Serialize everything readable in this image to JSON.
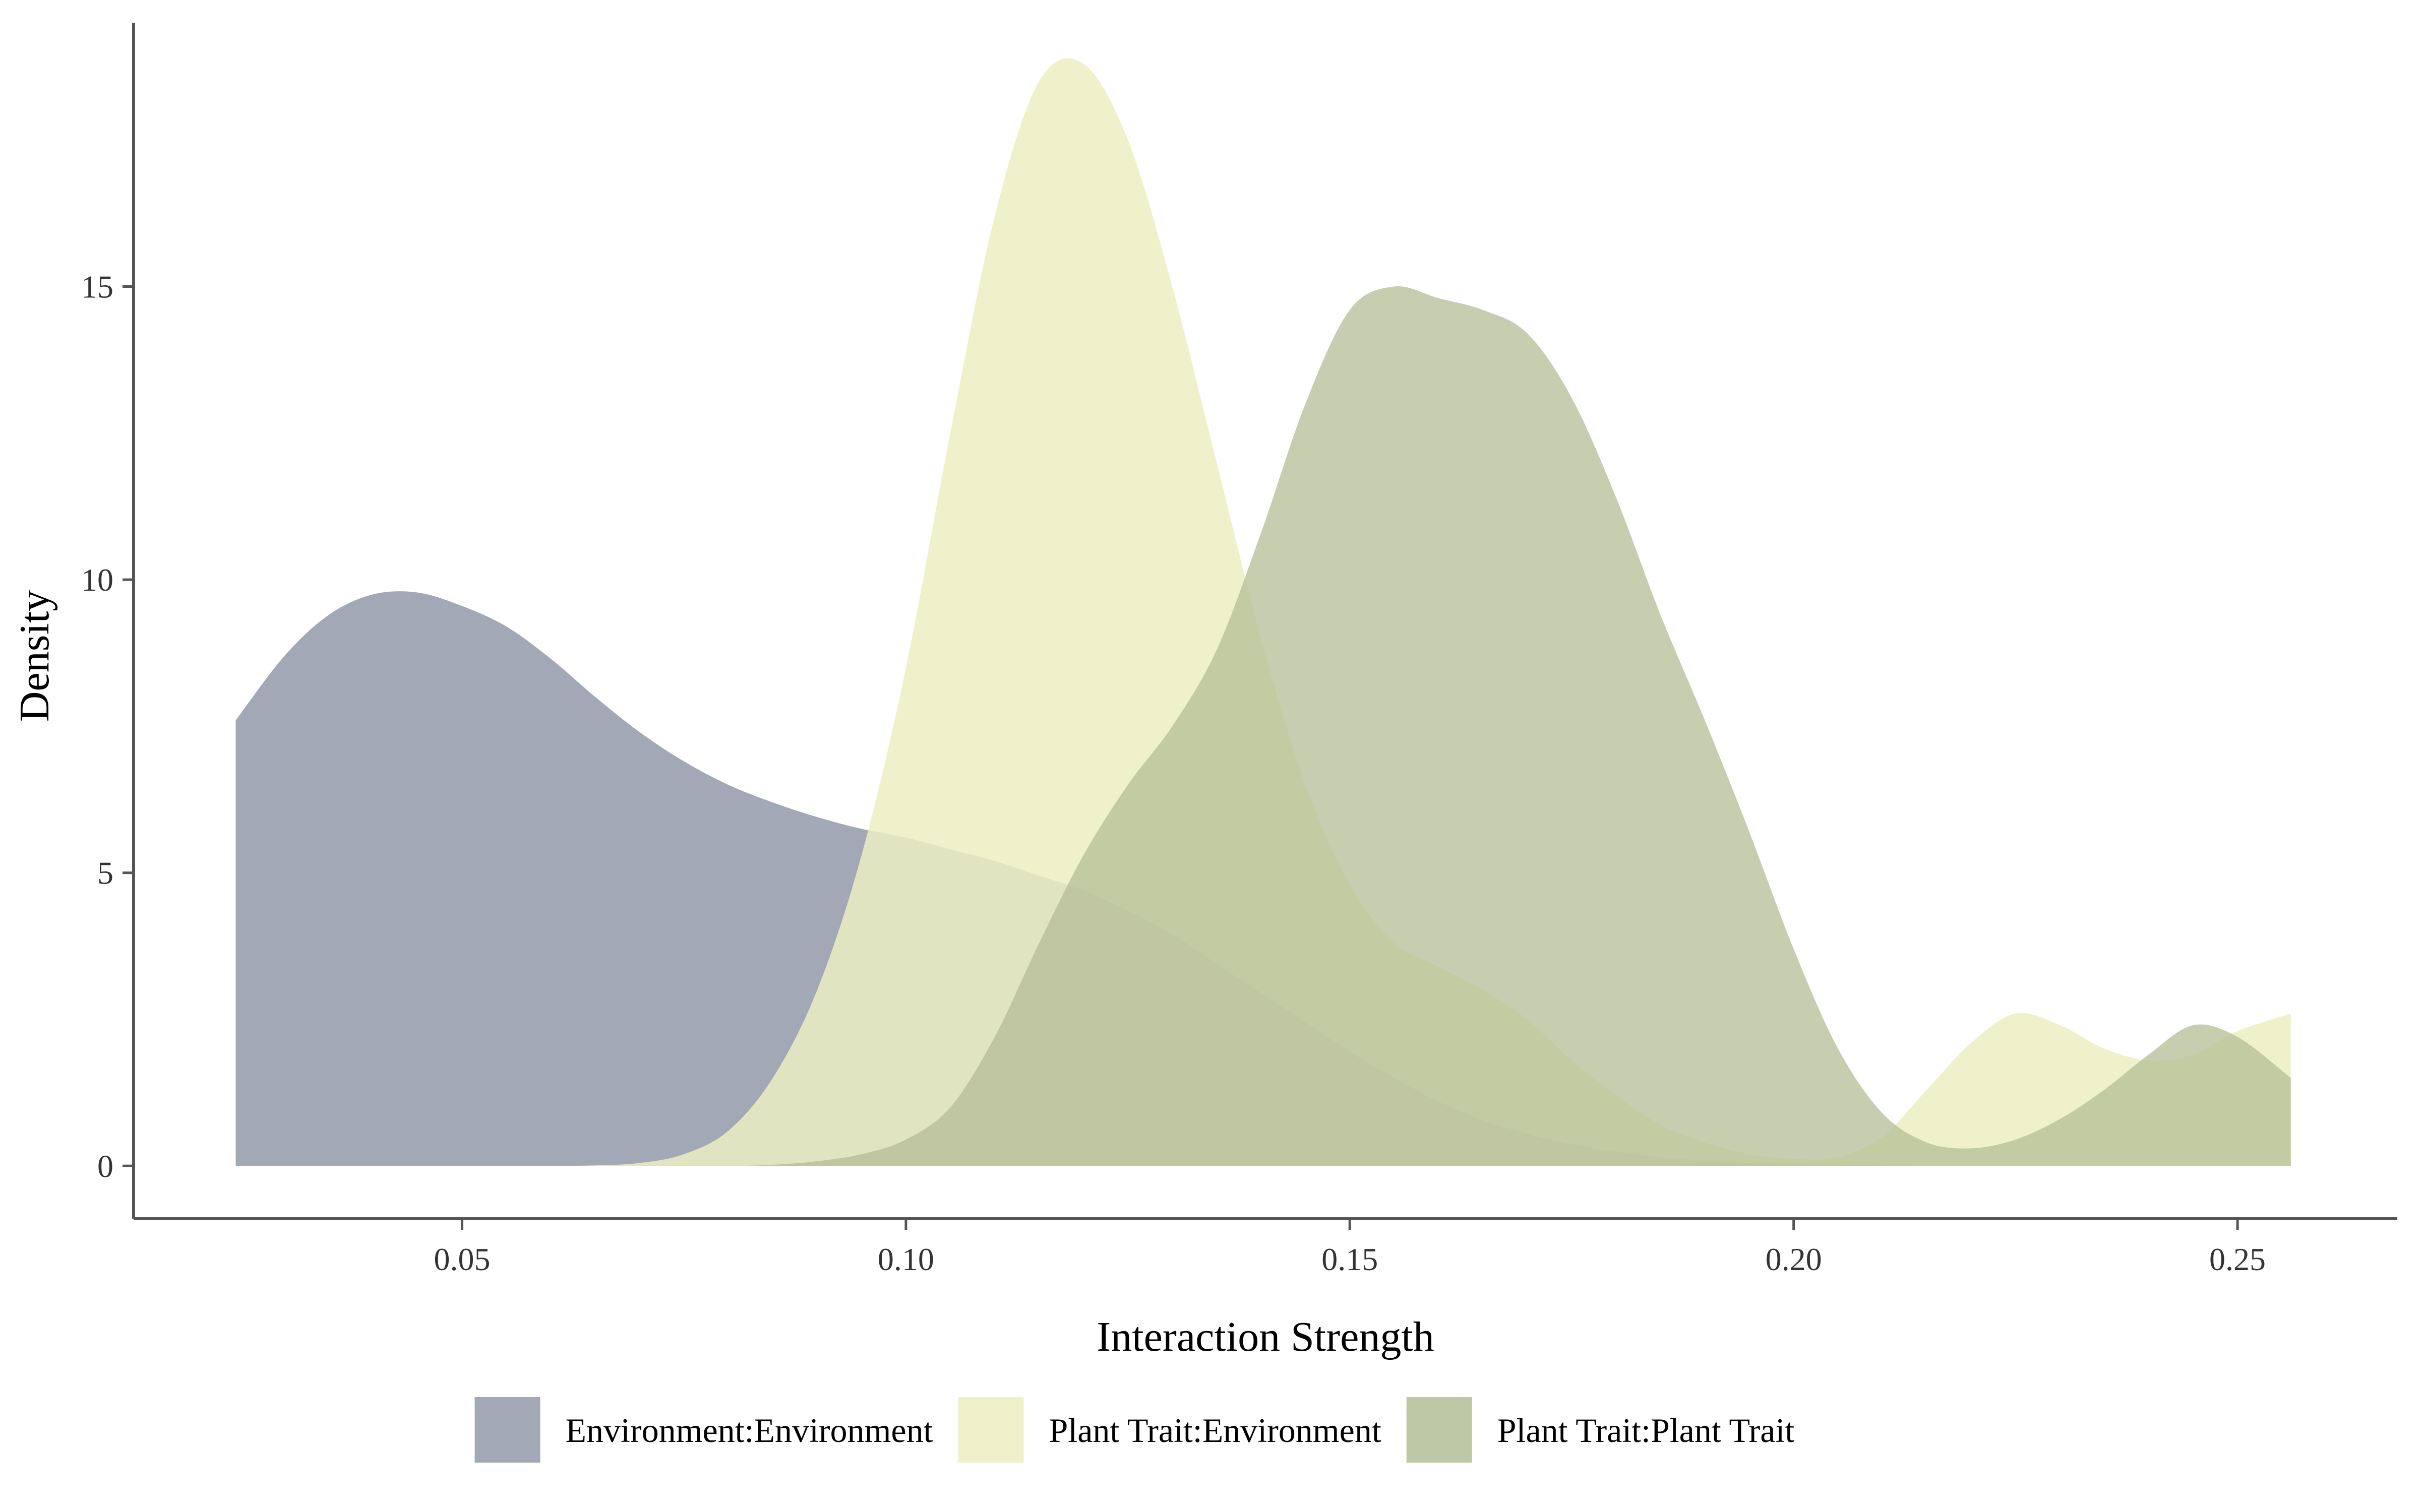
{
  "chart_data": {
    "type": "area",
    "subtype": "density",
    "title": "",
    "xlabel": "Interaction Strength",
    "ylabel": "Density",
    "xlim": [
      0.013,
      0.268
    ],
    "ylim": [
      -0.9,
      19.5
    ],
    "xticks": [
      0.05,
      0.1,
      0.15,
      0.2,
      0.25
    ],
    "xtick_labels": [
      "0.05",
      "0.10",
      "0.15",
      "0.20",
      "0.25"
    ],
    "yticks": [
      0,
      5,
      10,
      15
    ],
    "ytick_labels": [
      "0",
      "5",
      "10",
      "15"
    ],
    "grid": false,
    "legend_position": "bottom",
    "series": [
      {
        "name": "Environment:Environment",
        "color": "#a2a8b5",
        "opacity": 1.0,
        "x": [
          0.0245,
          0.03,
          0.035,
          0.04,
          0.045,
          0.05,
          0.055,
          0.06,
          0.065,
          0.07,
          0.075,
          0.08,
          0.085,
          0.09,
          0.095,
          0.1,
          0.105,
          0.11,
          0.115,
          0.12,
          0.125,
          0.13,
          0.135,
          0.14,
          0.145,
          0.15,
          0.155,
          0.16,
          0.165,
          0.17,
          0.175,
          0.18,
          0.185,
          0.19,
          0.195,
          0.2,
          0.205,
          0.21,
          0.215,
          0.22,
          0.225,
          0.23,
          0.235,
          0.24,
          0.245,
          0.25,
          0.256
        ],
        "y": [
          7.6,
          8.7,
          9.4,
          9.75,
          9.78,
          9.55,
          9.2,
          8.65,
          8.0,
          7.4,
          6.9,
          6.5,
          6.2,
          5.95,
          5.75,
          5.6,
          5.4,
          5.2,
          4.95,
          4.7,
          4.35,
          3.95,
          3.45,
          2.95,
          2.45,
          1.95,
          1.5,
          1.1,
          0.78,
          0.55,
          0.37,
          0.24,
          0.15,
          0.09,
          0.05,
          0.03,
          0.02,
          0.01,
          0.0,
          0.0,
          0.0,
          0.0,
          0.0,
          0.0,
          0.0,
          0.0,
          0.0
        ]
      },
      {
        "name": "Plant Trait:Environment",
        "color": "#ecefc2",
        "opacity": 0.85,
        "x": [
          0.0245,
          0.03,
          0.04,
          0.05,
          0.06,
          0.065,
          0.07,
          0.075,
          0.08,
          0.085,
          0.09,
          0.095,
          0.1,
          0.105,
          0.11,
          0.115,
          0.12,
          0.125,
          0.13,
          0.135,
          0.14,
          0.145,
          0.15,
          0.155,
          0.16,
          0.165,
          0.17,
          0.175,
          0.18,
          0.185,
          0.19,
          0.195,
          0.2,
          0.205,
          0.21,
          0.215,
          0.22,
          0.225,
          0.23,
          0.235,
          0.24,
          0.245,
          0.25,
          0.256
        ],
        "y": [
          0.0,
          0.0,
          0.0,
          0.0,
          0.0,
          0.01,
          0.05,
          0.2,
          0.6,
          1.5,
          3.0,
          5.3,
          8.5,
          12.5,
          16.2,
          18.5,
          18.8,
          17.5,
          15.0,
          12.0,
          9.0,
          6.5,
          4.8,
          3.8,
          3.4,
          3.0,
          2.5,
          1.8,
          1.2,
          0.7,
          0.4,
          0.2,
          0.12,
          0.15,
          0.5,
          1.3,
          2.1,
          2.6,
          2.4,
          2.0,
          1.8,
          1.9,
          2.3,
          2.6
        ]
      },
      {
        "name": "Plant Trait:Plant Trait",
        "color": "#b4be96",
        "opacity": 0.75,
        "x": [
          0.0245,
          0.03,
          0.04,
          0.05,
          0.06,
          0.07,
          0.08,
          0.085,
          0.09,
          0.095,
          0.1,
          0.105,
          0.11,
          0.115,
          0.12,
          0.125,
          0.13,
          0.135,
          0.14,
          0.145,
          0.15,
          0.155,
          0.16,
          0.165,
          0.17,
          0.175,
          0.18,
          0.185,
          0.19,
          0.195,
          0.2,
          0.205,
          0.21,
          0.215,
          0.22,
          0.225,
          0.23,
          0.235,
          0.24,
          0.245,
          0.25,
          0.256
        ],
        "y": [
          0.0,
          0.0,
          0.0,
          0.0,
          0.0,
          0.0,
          0.0,
          0.02,
          0.08,
          0.2,
          0.45,
          1.0,
          2.2,
          3.8,
          5.3,
          6.5,
          7.5,
          8.8,
          10.8,
          13.0,
          14.6,
          15.0,
          14.8,
          14.6,
          14.2,
          13.1,
          11.4,
          9.4,
          7.6,
          5.7,
          3.7,
          2.0,
          0.9,
          0.4,
          0.3,
          0.45,
          0.8,
          1.3,
          1.9,
          2.4,
          2.2,
          1.5
        ]
      }
    ]
  }
}
